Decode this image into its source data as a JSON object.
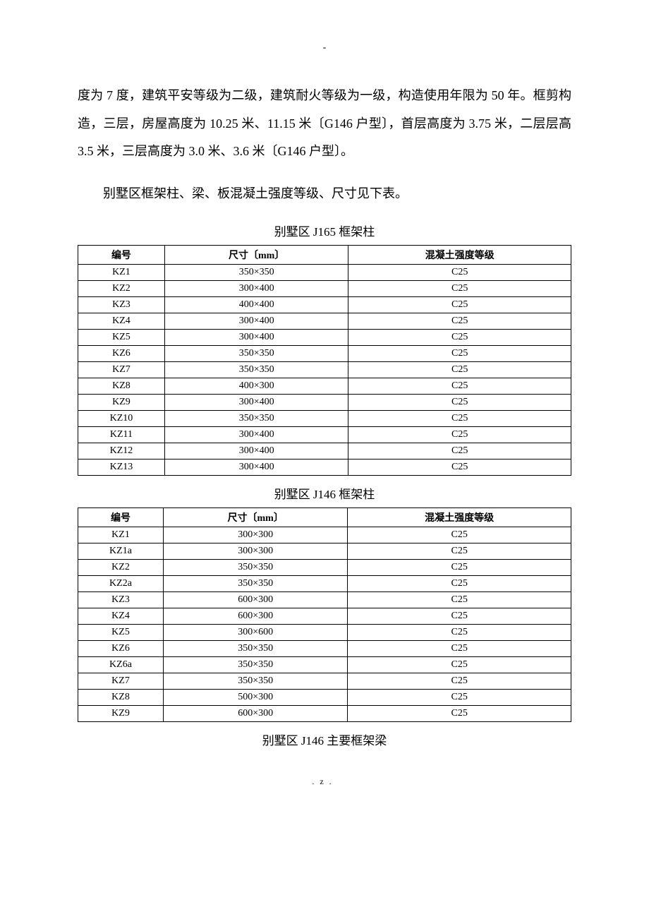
{
  "top_dash": "-",
  "paragraph1": "度为 7 度，建筑平安等级为二级，建筑耐火等级为一级，构造使用年限为 50 年。框剪构造，三层，房屋高度为 10.25 米、11.15 米〔G146 户型〕，首层高度为 3.75 米，二层层高 3.5 米，三层高度为 3.0 米、3.6 米〔G146 户型〕。",
  "paragraph2": "别墅区框架柱、梁、板混凝土强度等级、尺寸见下表。",
  "table1": {
    "title": "别墅区 J165 框架柱",
    "headers": [
      "编号",
      "尺寸〔mm〕",
      "混凝土强度等级"
    ],
    "rows": [
      [
        "KZ1",
        "350×350",
        "C25"
      ],
      [
        "KZ2",
        "300×400",
        "C25"
      ],
      [
        "KZ3",
        "400×400",
        "C25"
      ],
      [
        "KZ4",
        "300×400",
        "C25"
      ],
      [
        "KZ5",
        "300×400",
        "C25"
      ],
      [
        "KZ6",
        "350×350",
        "C25"
      ],
      [
        "KZ7",
        "350×350",
        "C25"
      ],
      [
        "KZ8",
        "400×300",
        "C25"
      ],
      [
        "KZ9",
        "300×400",
        "C25"
      ],
      [
        "KZ10",
        "350×350",
        "C25"
      ],
      [
        "KZ11",
        "300×400",
        "C25"
      ],
      [
        "KZ12",
        "300×400",
        "C25"
      ],
      [
        "KZ13",
        "300×400",
        "C25"
      ]
    ]
  },
  "table2": {
    "title": "别墅区 J146 框架柱",
    "headers": [
      "编号",
      "尺寸〔mm〕",
      "混凝土强度等级"
    ],
    "rows": [
      [
        "KZ1",
        "300×300",
        "C25"
      ],
      [
        "KZ1a",
        "300×300",
        "C25"
      ],
      [
        "KZ2",
        "350×350",
        "C25"
      ],
      [
        "KZ2a",
        "350×350",
        "C25"
      ],
      [
        "KZ3",
        "600×300",
        "C25"
      ],
      [
        "KZ4",
        "600×300",
        "C25"
      ],
      [
        "KZ5",
        "300×600",
        "C25"
      ],
      [
        "KZ6",
        "350×350",
        "C25"
      ],
      [
        "KZ6a",
        "350×350",
        "C25"
      ],
      [
        "KZ7",
        "350×350",
        "C25"
      ],
      [
        "KZ8",
        "500×300",
        "C25"
      ],
      [
        "KZ9",
        "600×300",
        "C25"
      ]
    ]
  },
  "table3_title": "别墅区 J146 主要框架梁",
  "footer": ".z."
}
